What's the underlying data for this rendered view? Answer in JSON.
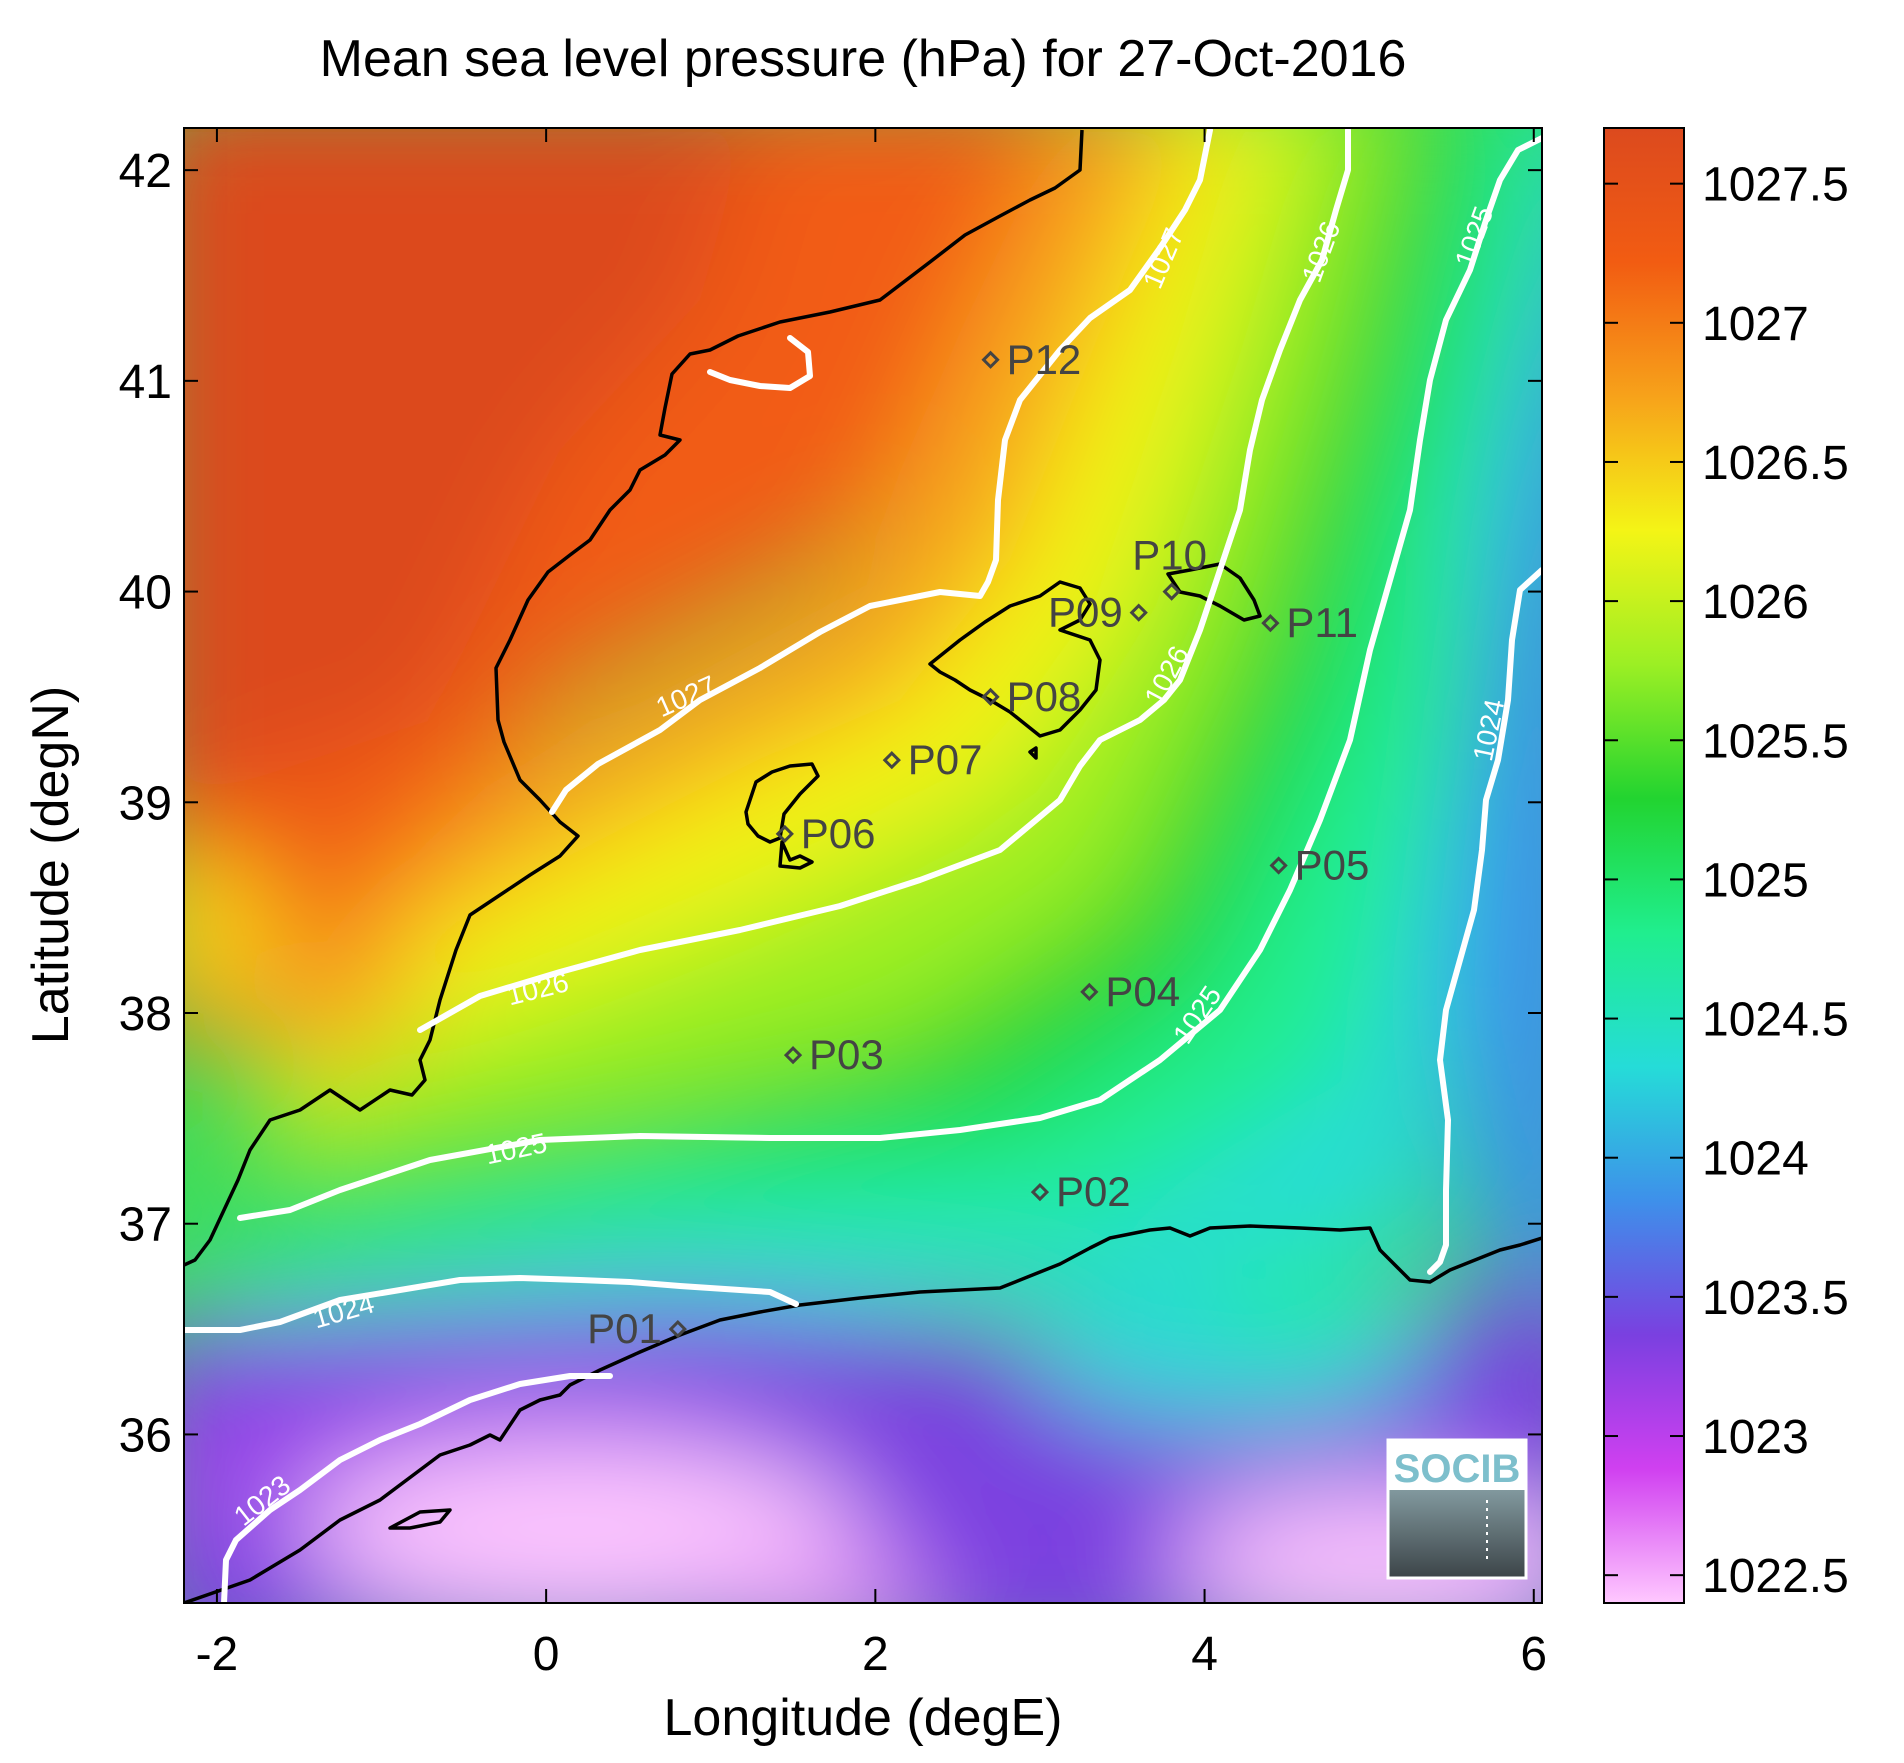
{
  "title": "Mean sea level pressure (hPa) for 27-Oct-2016",
  "xlabel": "Longitude (degE)",
  "ylabel": "Latitude (degN)",
  "x_ticks": [
    "-2",
    "0",
    "2",
    "4",
    "6"
  ],
  "y_ticks": [
    "42",
    "41",
    "40",
    "39",
    "38",
    "37",
    "36"
  ],
  "colorbar": {
    "ticks": [
      "1027.5",
      "1027",
      "1026.5",
      "1026",
      "1025.5",
      "1025",
      "1024.5",
      "1024",
      "1023.5",
      "1023",
      "1022.5"
    ],
    "colors": [
      "#ffc8ff",
      "#d040f0",
      "#7a40e0",
      "#3e90ea",
      "#25dcd8",
      "#20ee8e",
      "#22d430",
      "#9cef24",
      "#f4f416",
      "#f7a21a",
      "#f25c12",
      "#dc4a1e"
    ]
  },
  "contour_labels": [
    "1027",
    "1027",
    "1026",
    "1026",
    "1026",
    "1025",
    "1025",
    "1025",
    "1024",
    "1024",
    "1023"
  ],
  "stations": [
    "P01",
    "P02",
    "P03",
    "P04",
    "P05",
    "P06",
    "P07",
    "P08",
    "P09",
    "P10",
    "P11",
    "P12"
  ],
  "logo": "SOCIB",
  "chart_data": {
    "type": "heatmap",
    "title": "Mean sea level pressure (hPa) for 27-Oct-2016",
    "xlabel": "Longitude (degE)",
    "ylabel": "Latitude (degN)",
    "xlim": [
      -2.2,
      6.05
    ],
    "ylim": [
      35.2,
      42.2
    ],
    "clim": [
      1022.4,
      1027.7
    ],
    "colorbar_label_values": [
      1022.5,
      1023,
      1023.5,
      1024,
      1024.5,
      1025,
      1025.5,
      1026,
      1026.5,
      1027,
      1027.5
    ],
    "contour_levels": [
      1023,
      1024,
      1025,
      1026,
      1027
    ],
    "stations": [
      {
        "name": "P01",
        "lon": 0.8,
        "lat": 36.5
      },
      {
        "name": "P02",
        "lon": 3.0,
        "lat": 37.15
      },
      {
        "name": "P03",
        "lon": 1.5,
        "lat": 37.8
      },
      {
        "name": "P04",
        "lon": 3.3,
        "lat": 38.1
      },
      {
        "name": "P05",
        "lon": 4.45,
        "lat": 38.7
      },
      {
        "name": "P06",
        "lon": 1.45,
        "lat": 38.85
      },
      {
        "name": "P07",
        "lon": 2.1,
        "lat": 39.2
      },
      {
        "name": "P08",
        "lon": 2.7,
        "lat": 39.5
      },
      {
        "name": "P09",
        "lon": 3.6,
        "lat": 39.9
      },
      {
        "name": "P10",
        "lon": 3.8,
        "lat": 40.0
      },
      {
        "name": "P11",
        "lon": 4.4,
        "lat": 39.85
      },
      {
        "name": "P12",
        "lon": 2.7,
        "lat": 41.1
      }
    ]
  }
}
